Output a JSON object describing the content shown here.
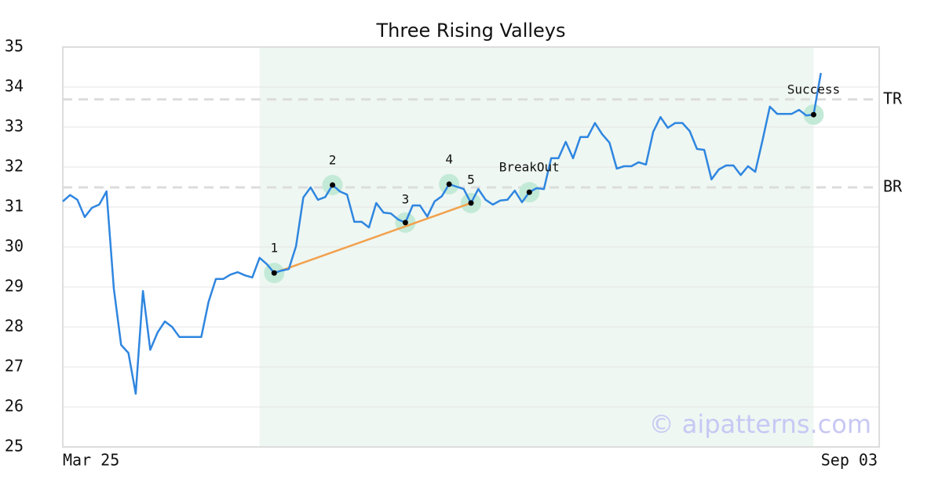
{
  "chart_data": {
    "type": "line",
    "title": "Three Rising Valleys",
    "watermark": "© aipatterns.com",
    "categories": [
      "Mar 25",
      null,
      null,
      null,
      null,
      null,
      null,
      null,
      null,
      null,
      null,
      null,
      null,
      null,
      null,
      null,
      null,
      null,
      null,
      null,
      null,
      null,
      null,
      null,
      null,
      null,
      null,
      null,
      null,
      null,
      null,
      null,
      null,
      null,
      null,
      null,
      null,
      null,
      null,
      null,
      null,
      null,
      null,
      null,
      null,
      null,
      null,
      null,
      null,
      null,
      null,
      null,
      null,
      null,
      null,
      null,
      null,
      null,
      null,
      null,
      null,
      null,
      null,
      null,
      null,
      null,
      null,
      null,
      null,
      null,
      null,
      null,
      null,
      null,
      null,
      null,
      null,
      null,
      null,
      null,
      null,
      null,
      null,
      null,
      null,
      null,
      null,
      null,
      null,
      null,
      null,
      null,
      null,
      null,
      null,
      null,
      null,
      null,
      null,
      null,
      null,
      null,
      null,
      null,
      null,
      null,
      null,
      null,
      null,
      null,
      null,
      null,
      "Sep 03"
    ],
    "values": [
      31.14,
      31.3,
      31.18,
      30.75,
      30.98,
      31.06,
      31.39,
      28.96,
      27.55,
      27.35,
      26.33,
      28.9,
      27.43,
      27.86,
      28.14,
      28.0,
      27.75,
      27.75,
      27.75,
      27.75,
      28.63,
      29.2,
      29.2,
      29.31,
      29.37,
      29.29,
      29.24,
      29.73,
      29.57,
      29.35,
      29.41,
      29.45,
      30.02,
      31.24,
      31.49,
      31.18,
      31.25,
      31.55,
      31.39,
      31.31,
      30.63,
      30.63,
      30.49,
      31.1,
      30.86,
      30.84,
      30.69,
      30.61,
      31.04,
      31.04,
      30.76,
      31.14,
      31.27,
      31.57,
      31.51,
      31.45,
      31.1,
      31.45,
      31.18,
      31.06,
      31.16,
      31.18,
      31.41,
      31.12,
      31.37,
      31.47,
      31.45,
      32.22,
      32.22,
      32.63,
      32.22,
      32.75,
      32.75,
      33.1,
      32.82,
      32.61,
      31.96,
      32.02,
      32.02,
      32.12,
      32.06,
      32.88,
      33.25,
      32.98,
      33.1,
      33.1,
      32.9,
      32.45,
      32.43,
      31.69,
      31.94,
      32.04,
      32.04,
      31.8,
      32.02,
      31.88,
      32.67,
      33.51,
      33.33,
      33.33,
      33.33,
      33.43,
      33.29,
      33.31,
      34.35,
      null,
      null,
      null,
      null,
      null,
      null,
      null,
      null
    ],
    "color": "#2f86e0",
    "ylim": [
      25,
      35
    ],
    "yticks": [
      25,
      26,
      27,
      28,
      29,
      30,
      31,
      32,
      33,
      34,
      35
    ],
    "grid": true,
    "highlight": {
      "from": 27,
      "to": 103,
      "color": "#eef7f2"
    },
    "levels": [
      {
        "label": "TR",
        "value": 33.69
      },
      {
        "label": "BR",
        "value": 31.49
      }
    ],
    "trendline_color": "#f2a04c",
    "points": [
      {
        "label": "1",
        "x": 29,
        "value": 29.35
      },
      {
        "label": "2",
        "x": 37,
        "value": 31.55
      },
      {
        "label": "3",
        "x": 47,
        "value": 30.61
      },
      {
        "label": "4",
        "x": 53,
        "value": 31.57
      },
      {
        "label": "5",
        "x": 56,
        "value": 31.1
      },
      {
        "label": "BreakOut",
        "x": 64,
        "value": 31.37
      },
      {
        "label": "Success",
        "x": 103,
        "value": 33.31
      }
    ]
  }
}
